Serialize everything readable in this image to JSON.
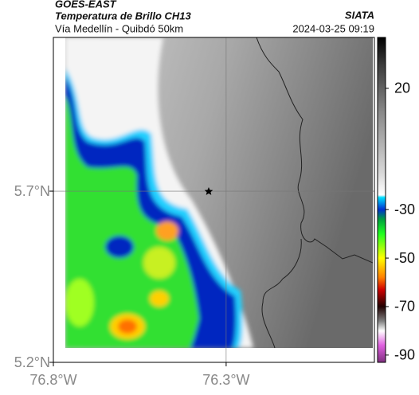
{
  "header": {
    "title": "GOES-EAST",
    "subtitle": "Temperatura de Brillo CH13",
    "source": "SIATA",
    "location": "Vía Medellín - Quibdó 50km",
    "datetime": "2024-03-25 09:19"
  },
  "map": {
    "xlim": [
      -76.8,
      -75.871
    ],
    "ylim": [
      5.2,
      6.149
    ],
    "xticks": [
      {
        "value": -76.8,
        "label": "76.8°W"
      },
      {
        "value": -76.3,
        "label": "76.3°W"
      }
    ],
    "yticks": [
      {
        "value": 5.7,
        "label": "5.7°N"
      },
      {
        "value": 5.2,
        "label": "5.2°N"
      }
    ],
    "grid": true
  },
  "colorbar": {
    "clim": [
      -93,
      41
    ],
    "ticks": [
      20,
      -30,
      -50,
      -70,
      -90
    ],
    "colormap": [
      {
        "value": 41,
        "color": "#000000"
      },
      {
        "value": 30,
        "color": "#3a3a3a"
      },
      {
        "value": 10,
        "color": "#8a8a8a"
      },
      {
        "value": -15,
        "color": "#d8d8d8"
      },
      {
        "value": -24,
        "color": "#ffffff"
      },
      {
        "value": -25,
        "color": "#00e0ff"
      },
      {
        "value": -30,
        "color": "#0030d0"
      },
      {
        "value": -34,
        "color": "#00a040"
      },
      {
        "value": -40,
        "color": "#20ff20"
      },
      {
        "value": -50,
        "color": "#ffff00"
      },
      {
        "value": -58,
        "color": "#ff8000"
      },
      {
        "value": -63,
        "color": "#d00000"
      },
      {
        "value": -70,
        "color": "#200000"
      },
      {
        "value": -76,
        "color": "#808080"
      },
      {
        "value": -80,
        "color": "#ffffff"
      },
      {
        "value": -86,
        "color": "#e060e0"
      },
      {
        "value": -93,
        "color": "#803080"
      }
    ]
  }
}
